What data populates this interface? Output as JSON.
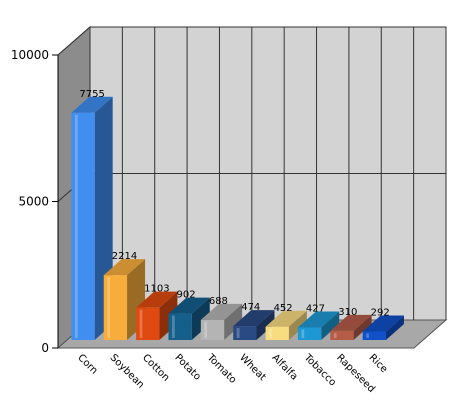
{
  "chart_data": {
    "type": "bar",
    "style": "3d",
    "categories": [
      "Corn",
      "Soybean",
      "Cotton",
      "Potato",
      "Tomato",
      "Wheat",
      "Alfalfa",
      "Tobacco",
      "Rapeseed",
      "Rice"
    ],
    "values": [
      7755,
      2214,
      1103,
      902,
      688,
      474,
      452,
      427,
      310,
      292
    ],
    "colors": [
      "#3f8ef0",
      "#f7ad3a",
      "#e04a10",
      "#155f8c",
      "#b4b4b4",
      "#2a4a84",
      "#f8dc80",
      "#1e98d4",
      "#b45c48",
      "#1050c8"
    ],
    "ylim": [
      0,
      10000
    ],
    "yticks": [
      "0",
      "5000",
      "10000"
    ],
    "grid": true,
    "wall_color": "#d3d3d3",
    "side_wall_color": "#8c8c8c",
    "floor_color": "#a8a8a8"
  }
}
